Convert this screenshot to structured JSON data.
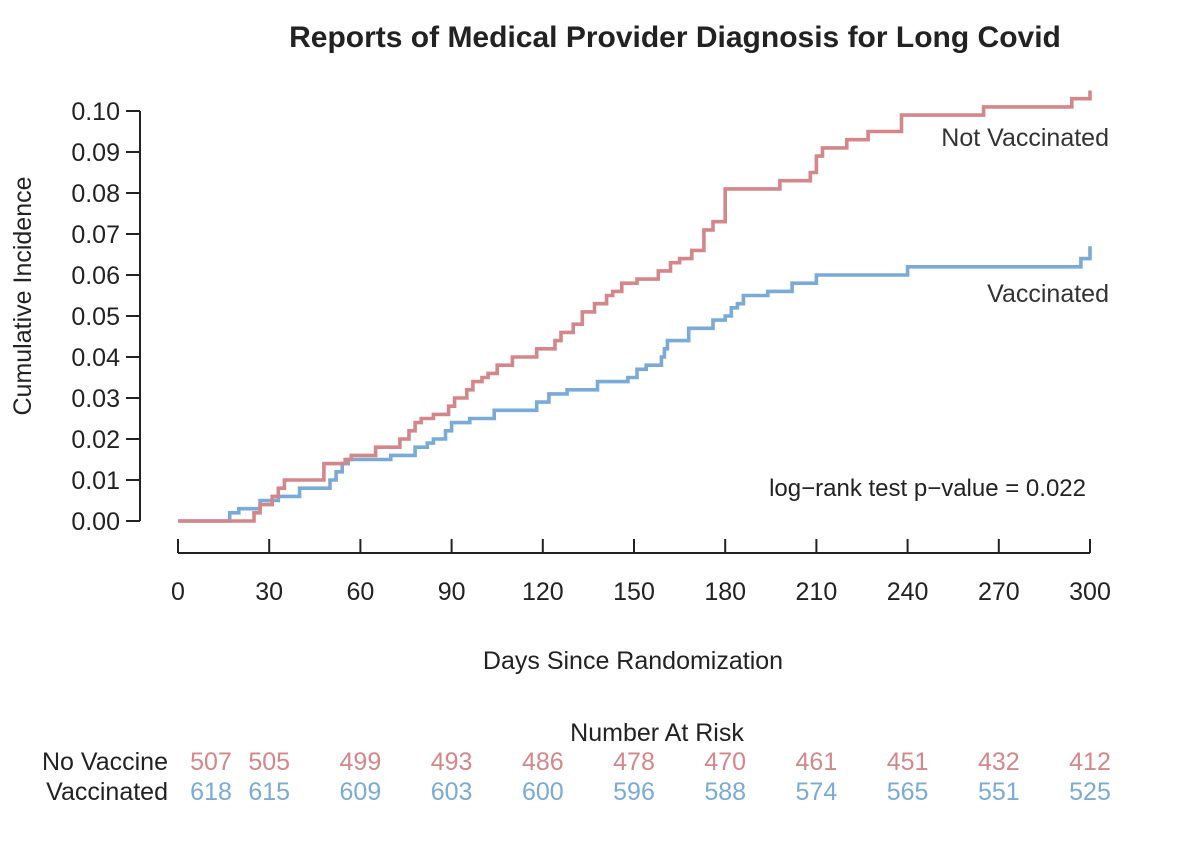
{
  "chart_data": {
    "type": "line",
    "step": true,
    "title": "Reports of Medical Provider Diagnosis for Long Covid",
    "xlabel": "Days Since Randomization",
    "ylabel": "Cumulative Incidence",
    "xlim": [
      0,
      300
    ],
    "ylim": [
      0,
      0.1
    ],
    "x_ticks": [
      0,
      30,
      60,
      90,
      120,
      150,
      180,
      210,
      240,
      270,
      300
    ],
    "y_ticks": [
      "0.00",
      "0.01",
      "0.02",
      "0.03",
      "0.04",
      "0.05",
      "0.06",
      "0.07",
      "0.08",
      "0.09",
      "0.10"
    ],
    "grid": false,
    "annotation": "log−rank test p−value = 0.022",
    "series": [
      {
        "name": "Not Vaccinated",
        "color": "#d4878a",
        "x": [
          0,
          25,
          27,
          31,
          33,
          35,
          48,
          55,
          57,
          65,
          73,
          76,
          78,
          80,
          84,
          89,
          91,
          95,
          97,
          100,
          102,
          105,
          110,
          118,
          124,
          126,
          130,
          133,
          137,
          141,
          143,
          146,
          151,
          158,
          162,
          165,
          169,
          173,
          176,
          180,
          198,
          208,
          210,
          212,
          220,
          227,
          238,
          265,
          294,
          300
        ],
        "y": [
          0,
          0.002,
          0.004,
          0.006,
          0.008,
          0.01,
          0.014,
          0.015,
          0.016,
          0.018,
          0.02,
          0.022,
          0.024,
          0.025,
          0.026,
          0.028,
          0.03,
          0.032,
          0.034,
          0.035,
          0.036,
          0.038,
          0.04,
          0.042,
          0.044,
          0.046,
          0.048,
          0.051,
          0.053,
          0.055,
          0.056,
          0.058,
          0.059,
          0.061,
          0.063,
          0.064,
          0.066,
          0.071,
          0.073,
          0.081,
          0.083,
          0.085,
          0.089,
          0.091,
          0.093,
          0.095,
          0.099,
          0.101,
          0.103,
          0.105
        ]
      },
      {
        "name": "Vaccinated",
        "color": "#7aaad6",
        "x": [
          0,
          17,
          20,
          27,
          33,
          40,
          50,
          52,
          54,
          56,
          70,
          78,
          82,
          84,
          88,
          90,
          96,
          104,
          118,
          122,
          128,
          138,
          148,
          151,
          154,
          159,
          160,
          161,
          168,
          176,
          180,
          182,
          184,
          186,
          194,
          202,
          210,
          240,
          297,
          300
        ],
        "y": [
          0,
          0.002,
          0.003,
          0.005,
          0.006,
          0.008,
          0.01,
          0.012,
          0.014,
          0.015,
          0.016,
          0.018,
          0.019,
          0.02,
          0.022,
          0.024,
          0.025,
          0.027,
          0.029,
          0.031,
          0.032,
          0.034,
          0.035,
          0.037,
          0.038,
          0.04,
          0.042,
          0.044,
          0.047,
          0.049,
          0.05,
          0.052,
          0.053,
          0.055,
          0.056,
          0.058,
          0.06,
          0.062,
          0.064,
          0.067
        ]
      }
    ],
    "risk_table": {
      "title": "Number At Risk",
      "rows": [
        {
          "label": "No Vaccine",
          "color": "#d4878a",
          "values": [
            507,
            505,
            499,
            493,
            486,
            478,
            470,
            461,
            451,
            432,
            412
          ]
        },
        {
          "label": "Vaccinated",
          "color": "#7aaad6",
          "values": [
            618,
            615,
            609,
            603,
            600,
            596,
            588,
            574,
            565,
            551,
            525
          ]
        }
      ]
    }
  }
}
